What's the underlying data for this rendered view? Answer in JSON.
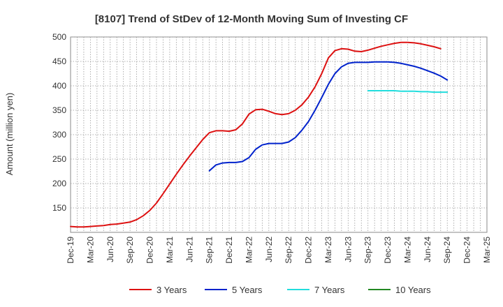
{
  "chart_data": {
    "type": "line",
    "title": "[8107]  Trend of StDev of 12-Month Moving Sum of Investing CF",
    "xlabel": "",
    "ylabel": "Amount (million yen)",
    "ylim": [
      100,
      500
    ],
    "yticks": [
      150,
      200,
      250,
      300,
      350,
      400,
      450,
      500
    ],
    "xtick_labels": [
      "Dec-19",
      "Mar-20",
      "Jun-20",
      "Sep-20",
      "Dec-20",
      "Mar-21",
      "Jun-21",
      "Sep-21",
      "Dec-21",
      "Mar-22",
      "Jun-22",
      "Sep-22",
      "Dec-22",
      "Mar-23",
      "Jun-23",
      "Sep-23",
      "Dec-23",
      "Mar-24",
      "Jun-24",
      "Sep-24",
      "Dec-24",
      "Mar-25"
    ],
    "grid": true,
    "legend_position": "bottom",
    "series": [
      {
        "name": "3 Years",
        "color": "#dd1111",
        "start_index": 0,
        "values": [
          112,
          111,
          111,
          112,
          113,
          114,
          116,
          117,
          119,
          121,
          126,
          134,
          145,
          160,
          179,
          199,
          219,
          238,
          256,
          273,
          290,
          304,
          308,
          308,
          307,
          310,
          322,
          342,
          351,
          352,
          348,
          343,
          341,
          343,
          350,
          361,
          377,
          398,
          425,
          457,
          472,
          476,
          475,
          471,
          470,
          473,
          477,
          481,
          484,
          487,
          489,
          489,
          488,
          486,
          483,
          480,
          476
        ]
      },
      {
        "name": "5 Years",
        "color": "#0022cc",
        "start_index": 21,
        "values": [
          226,
          238,
          242,
          243,
          243,
          245,
          253,
          270,
          279,
          282,
          282,
          282,
          285,
          294,
          309,
          327,
          350,
          376,
          403,
          425,
          439,
          446,
          448,
          448,
          448,
          449,
          449,
          449,
          448,
          446,
          443,
          440,
          436,
          431,
          426,
          420,
          412
        ]
      },
      {
        "name": "7 Years",
        "color": "#22dddd",
        "start_index": 45,
        "values": [
          390,
          390,
          390,
          390,
          390,
          389,
          389,
          389,
          388,
          388,
          387,
          387,
          387
        ]
      },
      {
        "name": "10 Years",
        "color": "#228822",
        "start_index": 0,
        "values": []
      }
    ]
  }
}
